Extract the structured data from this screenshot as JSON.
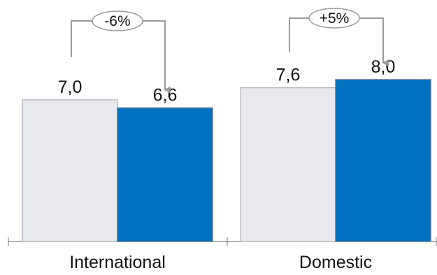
{
  "chart_data": {
    "type": "bar",
    "categories": [
      "International",
      "Domestic"
    ],
    "series": [
      {
        "values": [
          7.0,
          7.6
        ],
        "labels": [
          "7,0",
          "7,6"
        ],
        "color": "#e8e9ed",
        "stroke": "#b8bbc2"
      },
      {
        "values": [
          6.6,
          8.0
        ],
        "labels": [
          "6,6",
          "8,0"
        ],
        "color": "#0070c0",
        "stroke": "#5a7a9a"
      }
    ],
    "changes": [
      "-6%",
      "+5%"
    ],
    "ylim": [
      0,
      8.0
    ],
    "grid": false,
    "title": "",
    "xlabel": "",
    "ylabel": ""
  }
}
